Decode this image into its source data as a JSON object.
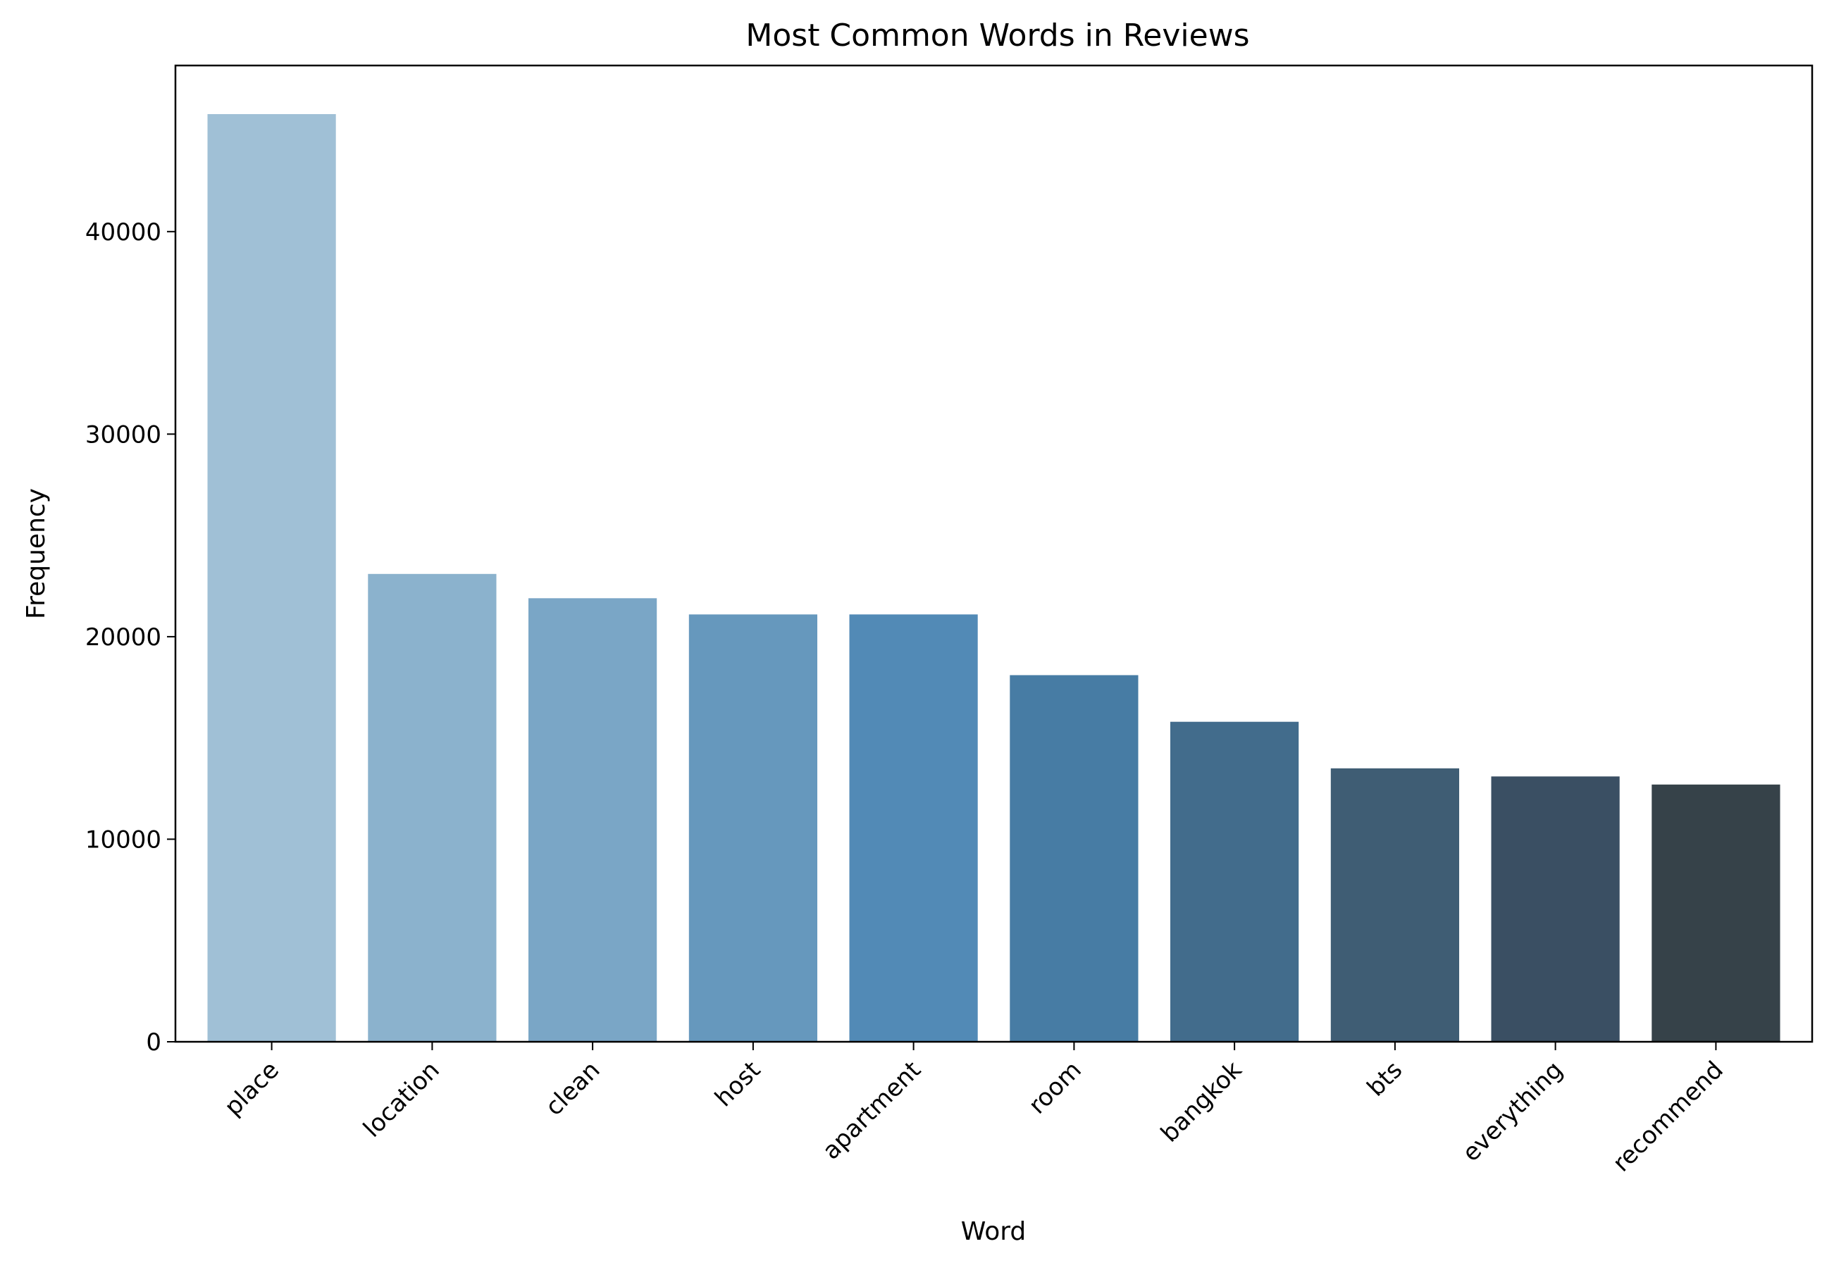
{
  "chart_data": {
    "type": "bar",
    "title": "Most Common Words in Reviews",
    "xlabel": "Word",
    "ylabel": "Frequency",
    "categories": [
      "place",
      "location",
      "clean",
      "host",
      "apartment",
      "room",
      "bangkok",
      "bts",
      "everything",
      "recommend"
    ],
    "values": [
      45800,
      23100,
      21900,
      21100,
      21100,
      18100,
      15800,
      13500,
      13100,
      12700
    ],
    "ylim": [
      0,
      48200
    ],
    "yticks": [
      0,
      10000,
      20000,
      30000,
      40000
    ],
    "ytick_labels": [
      "0",
      "10000",
      "20000",
      "30000",
      "40000"
    ],
    "colors": [
      "#a0c0d6",
      "#8bb2cd",
      "#7aa6c6",
      "#6698bd",
      "#528ab6",
      "#477ca4",
      "#426c8c",
      "#3f5d74",
      "#3a4f63",
      "#364249"
    ],
    "grid": false,
    "legend": "none",
    "xtick_rotation": 45
  }
}
